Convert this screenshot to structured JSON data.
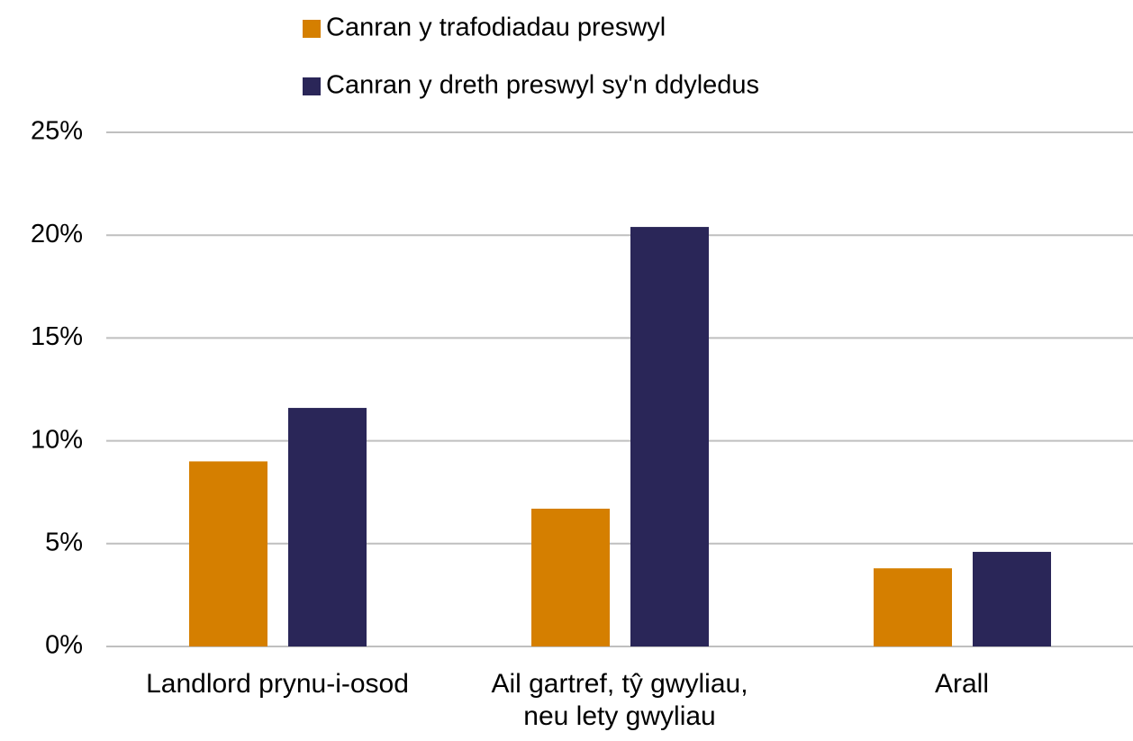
{
  "chart_data": {
    "type": "bar",
    "categories": [
      "Landlord prynu-i-osod",
      "Ail gartref, tŷ gwyliau, neu lety gwyliau",
      "Arall"
    ],
    "series": [
      {
        "name": "Canran y trafodiadau preswyl",
        "color": "#d57f00",
        "values": [
          9.0,
          6.7,
          3.8
        ]
      },
      {
        "name": "Canran y dreth preswyl sy'n ddyledus",
        "color": "#2a2658",
        "values": [
          11.6,
          20.4,
          4.6
        ]
      }
    ],
    "ylim": [
      0,
      25
    ],
    "yticks": [
      {
        "value": 0,
        "label": "0%"
      },
      {
        "value": 5,
        "label": "5%"
      },
      {
        "value": 10,
        "label": "10%"
      },
      {
        "value": 15,
        "label": "15%"
      },
      {
        "value": 20,
        "label": "20%"
      },
      {
        "value": 25,
        "label": "25%"
      }
    ],
    "grid": true,
    "legend": "top"
  }
}
